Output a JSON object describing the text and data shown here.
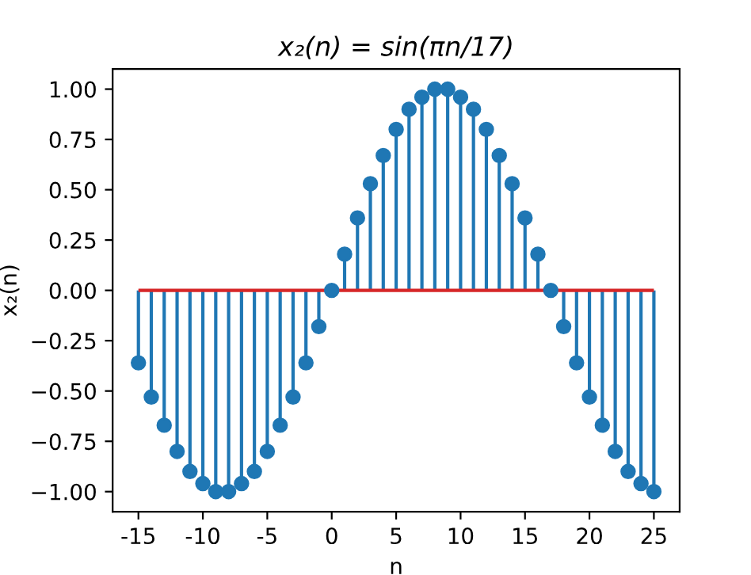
{
  "chart_data": {
    "type": "lollipop",
    "title": "x₂(n) = sin(πn/17)",
    "xlabel": "n",
    "ylabel": "x₂(n)",
    "x": [
      -15,
      -14,
      -13,
      -12,
      -11,
      -10,
      -9,
      -8,
      -7,
      -6,
      -5,
      -4,
      -3,
      -2,
      -1,
      0,
      1,
      2,
      3,
      4,
      5,
      6,
      7,
      8,
      9,
      10,
      11,
      12,
      13,
      14,
      15,
      16,
      17,
      18,
      19,
      20,
      21,
      22,
      23,
      24,
      25
    ],
    "series": [
      {
        "color": "#1f77b4",
        "values": [
          -0.36,
          -0.53,
          -0.67,
          -0.8,
          -0.9,
          -0.96,
          -1.0,
          -1.0,
          -0.96,
          -0.9,
          -0.8,
          -0.67,
          -0.53,
          -0.36,
          -0.18,
          0.0,
          0.18,
          0.36,
          0.53,
          0.67,
          0.8,
          0.9,
          0.96,
          1.0,
          1.0,
          0.96,
          0.9,
          0.8,
          0.67,
          0.53,
          0.36,
          0.18,
          0.0,
          -0.18,
          -0.36,
          -0.53,
          -0.67,
          -0.8,
          -0.9,
          -0.96,
          -1.0
        ]
      }
    ],
    "marker": "circle",
    "ref_lines": [
      {
        "axis": "y",
        "value": 0,
        "color": "#d62728"
      }
    ],
    "xlim": [
      -17,
      27
    ],
    "ylim": [
      -1.1,
      1.1
    ],
    "xticks": [
      -15,
      -10,
      -5,
      0,
      5,
      10,
      15,
      20,
      25
    ],
    "yticks": [
      {
        "value": -1,
        "label": "−1.00"
      },
      {
        "value": -0.75,
        "label": "−0.75"
      },
      {
        "value": -0.5,
        "label": "−0.50"
      },
      {
        "value": -0.25,
        "label": "−0.25"
      },
      {
        "value": 0,
        "label": "0.00"
      },
      {
        "value": 0.25,
        "label": "0.25"
      },
      {
        "value": 0.5,
        "label": "0.50"
      },
      {
        "value": 0.75,
        "label": "0.75"
      },
      {
        "value": 1,
        "label": "1.00"
      }
    ],
    "grid": false
  }
}
